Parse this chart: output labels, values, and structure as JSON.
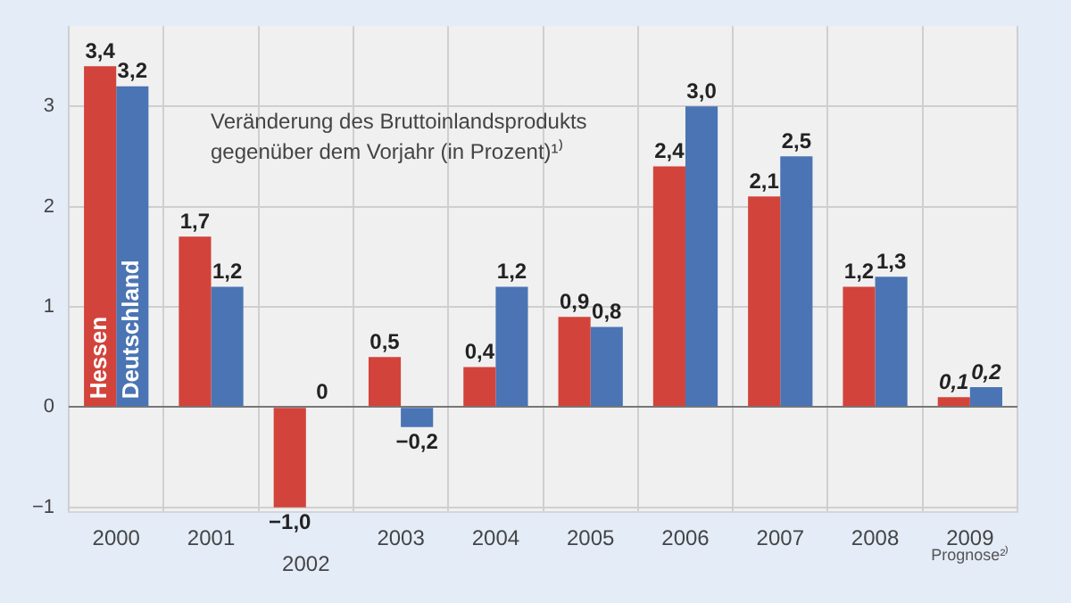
{
  "chart_data": {
    "type": "bar",
    "title": "Veränderung des Bruttoinlandsprodukts gegenüber dem Vorjahr (in Prozent)¹⁾",
    "categories": [
      "2000",
      "2001",
      "2002",
      "2003",
      "2004",
      "2005",
      "2006",
      "2007",
      "2008",
      "2009"
    ],
    "series": [
      {
        "name": "Hessen",
        "color": "#d2433b",
        "values": [
          3.4,
          1.7,
          -1.0,
          0.5,
          0.4,
          0.9,
          2.4,
          2.1,
          1.2,
          0.1
        ],
        "value_labels": [
          "3,4",
          "1,7",
          "−1,0",
          "0,5",
          "0,4",
          "0,9",
          "2,4",
          "2,1",
          "1,2",
          "0,1"
        ]
      },
      {
        "name": "Deutschland",
        "color": "#4a74b4",
        "values": [
          3.2,
          1.2,
          0,
          -0.2,
          1.2,
          0.8,
          3.0,
          2.5,
          1.3,
          0.2
        ],
        "value_labels": [
          "3,2",
          "1,2",
          "0",
          "−0,2",
          "1,2",
          "0,8",
          "3,0",
          "2,5",
          "1,3",
          "0,2"
        ]
      }
    ],
    "ylim": [
      -1.05,
      3.8
    ],
    "yticks": [
      {
        "value": -1,
        "label": "−1"
      },
      0,
      1,
      2,
      3
    ],
    "grid": true,
    "legend": false,
    "annotations": [
      "Prognose²⁾"
    ]
  }
}
